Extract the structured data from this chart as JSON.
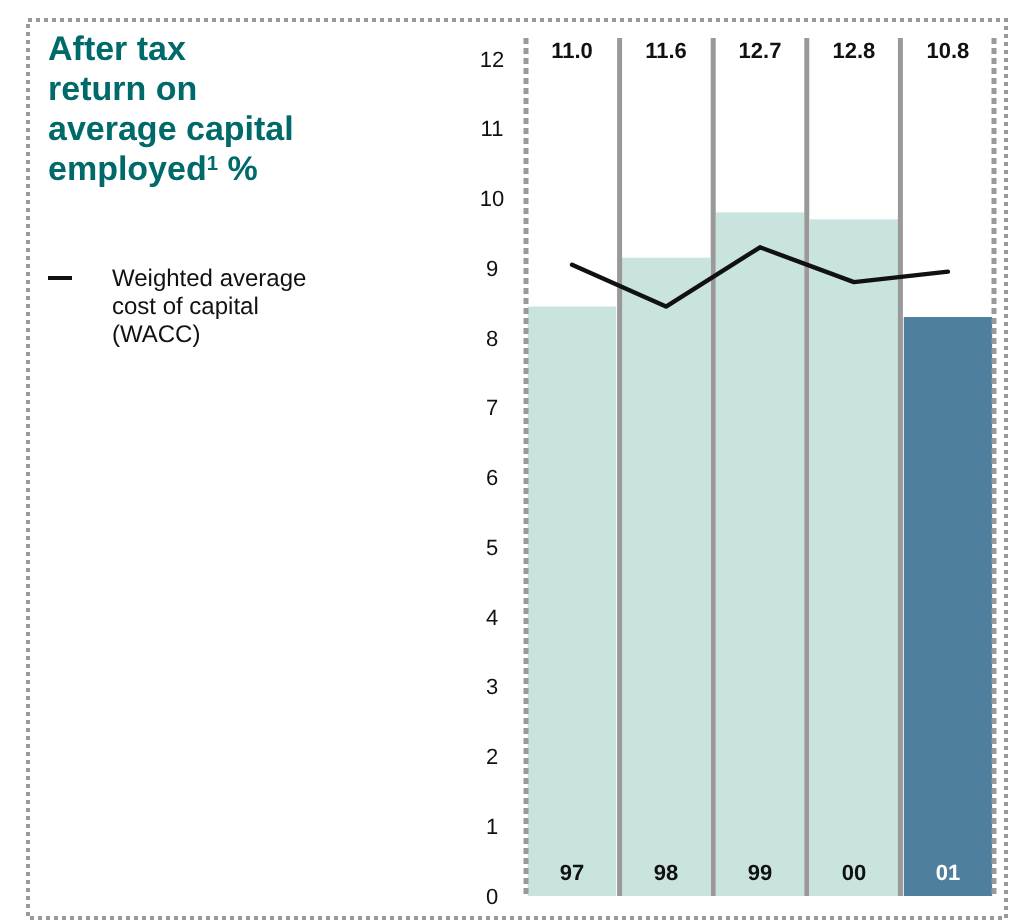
{
  "chart_data": {
    "type": "bar",
    "title": "After tax return on average capital employed$^{1}$ %",
    "categories": [
      "97",
      "98",
      "99",
      "00",
      "01"
    ],
    "series": [
      {
        "colors": [
          "#c9e4df",
          "#c9e4df",
          "#c9e4df",
          "#c9e4df",
          "#4f7f9f"
        ],
        "values": [
          8.45,
          9.15,
          9.8,
          9.7,
          8.3
        ]
      },
      {
        "type": "line",
        "name": "Weighted average cost of capital (WACC)",
        "color": "#111111",
        "values": [
          9.05,
          8.45,
          9.3,
          8.8,
          8.95
        ]
      }
    ],
    "annotations": [
      "11.0",
      "11.6",
      "12.7",
      "12.8",
      "10.8"
    ],
    "ylim": [
      0,
      12.3
    ],
    "yticks": [
      0,
      1,
      2,
      3,
      4,
      5,
      6,
      7,
      8,
      9,
      10,
      11,
      12
    ],
    "grid": "x",
    "legend": "left"
  }
}
